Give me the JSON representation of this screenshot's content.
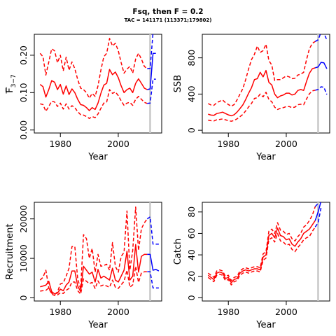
{
  "title": "Fsq, then F = 0.2",
  "subtitle": "TAC = 141171 (113371;179802)",
  "colors": {
    "history": "#ff0000",
    "projection": "#0000ff",
    "divider": "#c8c8c8"
  },
  "chart_data": [
    {
      "type": "line",
      "title": "",
      "xlabel": "Year",
      "ylabel_main": "F",
      "ylabel_sub": "3−7",
      "xlim": [
        1971,
        2015
      ],
      "ylim": [
        -0.008,
        0.256
      ],
      "xticks": [
        "1980",
        "2000"
      ],
      "xtick_values": [
        1980,
        2000
      ],
      "yticks": [
        "0.00",
        "0.10",
        "0.20"
      ],
      "ytick_values": [
        0,
        0.1,
        0.2
      ],
      "divider_x": 2011,
      "history": {
        "x": [
          1973,
          1974,
          1975,
          1976,
          1977,
          1978,
          1979,
          1980,
          1981,
          1982,
          1983,
          1984,
          1985,
          1986,
          1987,
          1988,
          1989,
          1990,
          1991,
          1992,
          1993,
          1994,
          1995,
          1996,
          1997,
          1998,
          1999,
          2000,
          2001,
          2002,
          2003,
          2004,
          2005,
          2006,
          2007,
          2008,
          2009,
          2010
        ],
        "mid": [
          0.122,
          0.116,
          0.088,
          0.108,
          0.132,
          0.128,
          0.108,
          0.122,
          0.096,
          0.118,
          0.095,
          0.11,
          0.1,
          0.082,
          0.068,
          0.066,
          0.06,
          0.052,
          0.06,
          0.055,
          0.072,
          0.098,
          0.12,
          0.125,
          0.162,
          0.148,
          0.155,
          0.14,
          0.118,
          0.1,
          0.108,
          0.112,
          0.1,
          0.125,
          0.137,
          0.125,
          0.112,
          0.108
        ],
        "upper": [
          0.205,
          0.196,
          0.147,
          0.182,
          0.217,
          0.212,
          0.18,
          0.2,
          0.158,
          0.195,
          0.16,
          0.182,
          0.164,
          0.135,
          0.112,
          0.108,
          0.1,
          0.085,
          0.098,
          0.09,
          0.118,
          0.16,
          0.196,
          0.205,
          0.245,
          0.225,
          0.232,
          0.212,
          0.18,
          0.152,
          0.163,
          0.17,
          0.152,
          0.19,
          0.205,
          0.19,
          0.17,
          0.164
        ],
        "lower": [
          0.07,
          0.068,
          0.05,
          0.063,
          0.077,
          0.075,
          0.063,
          0.072,
          0.056,
          0.07,
          0.056,
          0.065,
          0.06,
          0.049,
          0.041,
          0.04,
          0.036,
          0.031,
          0.036,
          0.033,
          0.043,
          0.058,
          0.072,
          0.075,
          0.108,
          0.098,
          0.102,
          0.092,
          0.078,
          0.066,
          0.072,
          0.074,
          0.066,
          0.082,
          0.09,
          0.082,
          0.074,
          0.071
        ]
      },
      "projection": {
        "x": [
          2010,
          2011,
          2012,
          2013
        ],
        "mid": [
          0.108,
          0.11,
          0.205,
          0.205
        ],
        "upper": [
          0.164,
          0.165,
          0.26,
          0.26
        ],
        "lower": [
          0.071,
          0.072,
          0.136,
          0.136
        ]
      }
    },
    {
      "type": "line",
      "title": "",
      "xlabel": "Year",
      "ylabel_main": "SSB",
      "ylabel_sub": "",
      "xlim": [
        1971,
        2015
      ],
      "ylim": [
        -30,
        1060
      ],
      "xticks": [
        "1980",
        "2000"
      ],
      "xtick_values": [
        1980,
        2000
      ],
      "yticks": [
        "0",
        "400",
        "800"
      ],
      "ytick_values": [
        0,
        400,
        800
      ],
      "divider_x": 2011,
      "history": {
        "x": [
          1973,
          1974,
          1975,
          1976,
          1977,
          1978,
          1979,
          1980,
          1981,
          1982,
          1983,
          1984,
          1985,
          1986,
          1987,
          1988,
          1989,
          1990,
          1991,
          1992,
          1993,
          1994,
          1995,
          1996,
          1997,
          1998,
          1999,
          2000,
          2001,
          2002,
          2003,
          2004,
          2005,
          2006,
          2007,
          2008,
          2009,
          2010
        ],
        "mid": [
          178,
          168,
          165,
          185,
          192,
          200,
          185,
          170,
          160,
          172,
          200,
          240,
          280,
          340,
          410,
          470,
          560,
          570,
          640,
          590,
          660,
          530,
          500,
          400,
          360,
          380,
          390,
          410,
          410,
          390,
          400,
          440,
          450,
          440,
          540,
          630,
          680,
          690
        ],
        "upper": [
          295,
          280,
          275,
          305,
          320,
          335,
          305,
          285,
          265,
          285,
          335,
          400,
          460,
          560,
          680,
          780,
          840,
          930,
          860,
          880,
          950,
          770,
          720,
          550,
          560,
          560,
          580,
          600,
          590,
          570,
          575,
          610,
          620,
          640,
          780,
          900,
          960,
          980
        ],
        "lower": [
          112,
          106,
          103,
          116,
          120,
          125,
          116,
          106,
          100,
          108,
          126,
          150,
          175,
          215,
          258,
          296,
          352,
          360,
          400,
          370,
          420,
          340,
          315,
          255,
          230,
          243,
          250,
          262,
          262,
          250,
          256,
          282,
          288,
          282,
          346,
          403,
          435,
          442
        ]
      },
      "projection": {
        "x": [
          2010,
          2011,
          2012,
          2013,
          2014
        ],
        "mid": [
          690,
          700,
          750,
          745,
          680
        ],
        "upper": [
          980,
          1000,
          1080,
          1070,
          1000
        ],
        "lower": [
          442,
          450,
          480,
          475,
          395
        ]
      }
    },
    {
      "type": "line",
      "title": "",
      "xlabel": "Year",
      "ylabel_main": "Recruitment",
      "ylabel_sub": "",
      "xlim": [
        1971,
        2015
      ],
      "ylim": [
        -800,
        24200
      ],
      "xticks": [
        "1980",
        "2000"
      ],
      "xtick_values": [
        1980,
        2000
      ],
      "yticks": [
        "0",
        "10000",
        "20000"
      ],
      "ytick_values": [
        0,
        10000,
        20000
      ],
      "divider_x": 2011,
      "history": {
        "x": [
          1973,
          1974,
          1975,
          1976,
          1977,
          1978,
          1979,
          1980,
          1981,
          1982,
          1983,
          1984,
          1985,
          1986,
          1987,
          1988,
          1989,
          1990,
          1991,
          1992,
          1993,
          1994,
          1995,
          1996,
          1997,
          1998,
          1999,
          2000,
          2001,
          2002,
          2003,
          2004,
          2005,
          2006,
          2007,
          2008,
          2009,
          2010
        ],
        "mid": [
          2800,
          3000,
          3200,
          4200,
          1600,
          1000,
          1200,
          2200,
          1800,
          3200,
          4000,
          6800,
          6800,
          3000,
          1600,
          8000,
          7000,
          6000,
          6500,
          4000,
          7200,
          5000,
          5500,
          5000,
          4500,
          7500,
          4500,
          4000,
          5500,
          7000,
          11800,
          4500,
          5500,
          13500,
          6500,
          10500,
          11000,
          11000
        ],
        "upper": [
          4500,
          5200,
          7000,
          2500,
          1200,
          800,
          1500,
          3500,
          3800,
          5500,
          7500,
          13000,
          13000,
          4800,
          2200,
          16000,
          15000,
          10000,
          12500,
          6500,
          11000,
          8000,
          8200,
          8500,
          7000,
          14000,
          8000,
          6500,
          10500,
          11500,
          22000,
          7000,
          12000,
          23000,
          12000,
          17500,
          19000,
          20000
        ],
        "lower": [
          1700,
          1800,
          1900,
          2500,
          950,
          600,
          720,
          1300,
          1100,
          1900,
          2400,
          4000,
          4000,
          1800,
          950,
          4800,
          4200,
          3600,
          3900,
          2400,
          4300,
          3000,
          3300,
          3000,
          2700,
          4500,
          2700,
          2400,
          3300,
          4200,
          7000,
          2700,
          3300,
          8000,
          3900,
          6300,
          6600,
          6600
        ]
      },
      "projection": {
        "x": [
          2010,
          2011,
          2012,
          2013,
          2014
        ],
        "mid": [
          11000,
          11000,
          7000,
          7200,
          6800
        ],
        "upper": [
          20000,
          20500,
          13600,
          13600,
          13600
        ],
        "lower": [
          6600,
          6600,
          2500,
          2500,
          2500
        ]
      }
    },
    {
      "type": "line",
      "title": "",
      "xlabel": "Year",
      "ylabel_main": "Catch",
      "ylabel_sub": "",
      "xlim": [
        1971,
        2015
      ],
      "ylim": [
        -3,
        89
      ],
      "xticks": [
        "1980",
        "2000"
      ],
      "xtick_values": [
        1980,
        2000
      ],
      "yticks": [
        "0",
        "20",
        "40",
        "60",
        "80"
      ],
      "ytick_values": [
        0,
        20,
        40,
        60,
        80
      ],
      "divider_x": 2011,
      "history": {
        "x": [
          1973,
          1974,
          1975,
          1976,
          1977,
          1978,
          1979,
          1980,
          1981,
          1982,
          1983,
          1984,
          1985,
          1986,
          1987,
          1988,
          1989,
          1990,
          1991,
          1992,
          1993,
          1994,
          1995,
          1996,
          1997,
          1998,
          1999,
          2000,
          2001,
          2002,
          2003,
          2004,
          2005,
          2006,
          2007,
          2008,
          2009,
          2010
        ],
        "mid": [
          21,
          19,
          17,
          23,
          24,
          23,
          18,
          19,
          14,
          17,
          18,
          23,
          25,
          26,
          25,
          26,
          27,
          27,
          26,
          38,
          40,
          58,
          60,
          56,
          65,
          58,
          57,
          54,
          55,
          50,
          48,
          52,
          55,
          60,
          62,
          64,
          68,
          72
        ],
        "upper": [
          23,
          21,
          19,
          25,
          26,
          25,
          20,
          21,
          16,
          19,
          20,
          25,
          27,
          28,
          27,
          28,
          29,
          29,
          28,
          41,
          43,
          62,
          64,
          60,
          70,
          63,
          62,
          59,
          60,
          55,
          53,
          57,
          60,
          66,
          68,
          72,
          77,
          85
        ],
        "lower": [
          19,
          17,
          15,
          21,
          22,
          21,
          16,
          17,
          12,
          15,
          16,
          21,
          23,
          24,
          23,
          24,
          25,
          25,
          24,
          35,
          37,
          54,
          56,
          52,
          60,
          53,
          52,
          49,
          50,
          45,
          43,
          47,
          50,
          54,
          56,
          57,
          62,
          66
        ]
      },
      "projection": {
        "x": [
          2010,
          2011,
          2012
        ],
        "mid": [
          72,
          80,
          90
        ],
        "upper": [
          85,
          88,
          96
        ],
        "lower": [
          66,
          70,
          84
        ]
      }
    }
  ]
}
